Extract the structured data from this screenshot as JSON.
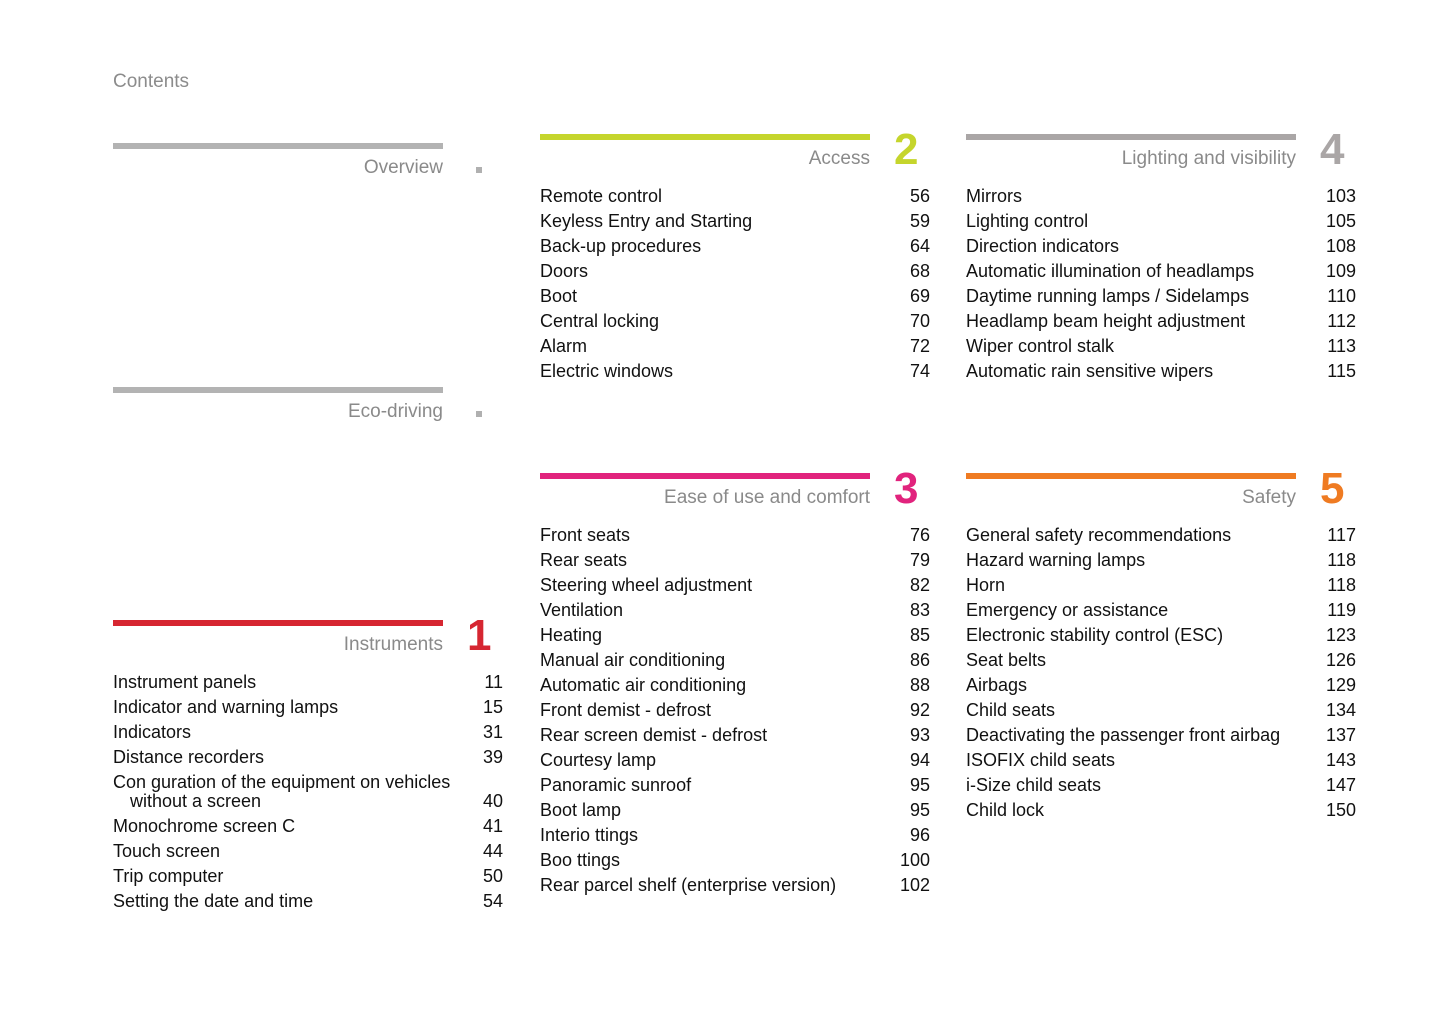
{
  "page_title": "Contents",
  "sections": [
    {
      "id": "overview",
      "title": "Overview",
      "color": "#b3b3b3",
      "number": "",
      "items": []
    },
    {
      "id": "eco",
      "title": "Eco-driving",
      "color": "#b3b3b3",
      "number": "",
      "items": []
    },
    {
      "id": "instruments",
      "title": "Instruments",
      "color": "#d62631",
      "number": "1",
      "items": [
        {
          "text": "Instrument panels",
          "page": "11"
        },
        {
          "text": "Indicator and warning lamps",
          "page": "15"
        },
        {
          "text": "Indicators",
          "page": "31"
        },
        {
          "text": "Distance recorders",
          "page": "39"
        },
        {
          "text": "Con  guration of the equipment on vehicles",
          "text2": "without a screen",
          "page": "40"
        },
        {
          "text": "Monochrome screen C",
          "page": "41"
        },
        {
          "text": "Touch screen",
          "page": "44"
        },
        {
          "text": "Trip computer",
          "page": "50"
        },
        {
          "text": "Setting the date and time",
          "page": "54"
        }
      ]
    },
    {
      "id": "access",
      "title": "Access",
      "color": "#c5d52c",
      "number": "2",
      "items": [
        {
          "text": "Remote control",
          "page": "56"
        },
        {
          "text": "Keyless Entry and Starting",
          "page": "59"
        },
        {
          "text": "Back-up procedures",
          "page": "64"
        },
        {
          "text": "Doors",
          "page": "68"
        },
        {
          "text": "Boot",
          "page": "69"
        },
        {
          "text": "Central locking",
          "page": "70"
        },
        {
          "text": "Alarm",
          "page": "72"
        },
        {
          "text": "Electric windows",
          "page": "74"
        }
      ]
    },
    {
      "id": "ease",
      "title": "Ease of use and comfort",
      "color": "#e1237d",
      "number": "3",
      "items": [
        {
          "text": "Front seats",
          "page": "76"
        },
        {
          "text": "Rear seats",
          "page": "79"
        },
        {
          "text": "Steering wheel adjustment",
          "page": "82"
        },
        {
          "text": "Ventilation",
          "page": "83"
        },
        {
          "text": "Heating",
          "page": "85"
        },
        {
          "text": "Manual air conditioning",
          "page": "86"
        },
        {
          "text": "Automatic air conditioning",
          "page": "88"
        },
        {
          "text": "Front demist - defrost",
          "page": "92"
        },
        {
          "text": "Rear screen demist - defrost",
          "page": "93"
        },
        {
          "text": "Courtesy lamp",
          "page": "94"
        },
        {
          "text": "Panoramic sunroof",
          "page": "95"
        },
        {
          "text": "Boot lamp",
          "page": "95"
        },
        {
          "text": "Interio    ttings",
          "page": "96"
        },
        {
          "text": "Boo    ttings",
          "page": "100"
        },
        {
          "text": "Rear parcel shelf (enterprise version)",
          "page": "102"
        }
      ]
    },
    {
      "id": "lighting",
      "title": "Lighting and visibility",
      "color": "#aaa6a6",
      "number": "4",
      "items": [
        {
          "text": "Mirrors",
          "page": "103"
        },
        {
          "text": "Lighting control",
          "page": "105"
        },
        {
          "text": "Direction indicators",
          "page": "108"
        },
        {
          "text": "Automatic illumination of headlamps",
          "page": "109"
        },
        {
          "text": "Daytime running lamps / Sidelamps",
          "page": "110"
        },
        {
          "text": "Headlamp beam height adjustment",
          "page": "112"
        },
        {
          "text": "Wiper control stalk",
          "page": "113"
        },
        {
          "text": "Automatic rain sensitive wipers",
          "page": "115"
        }
      ]
    },
    {
      "id": "safety",
      "title": "Safety",
      "color": "#ef7b22",
      "number": "5",
      "items": [
        {
          "text": "General safety recommendations",
          "page": "117"
        },
        {
          "text": "Hazard warning lamps",
          "page": "118"
        },
        {
          "text": "Horn",
          "page": "118"
        },
        {
          "text": "Emergency or assistance",
          "page": "119"
        },
        {
          "text": "Electronic stability control (ESC)",
          "page": "123"
        },
        {
          "text": "Seat belts",
          "page": "126"
        },
        {
          "text": "Airbags",
          "page": "129"
        },
        {
          "text": "Child seats",
          "page": "134"
        },
        {
          "text": "Deactivating the passenger front airbag",
          "page": "137"
        },
        {
          "text": "ISOFIX child seats",
          "page": "143"
        },
        {
          "text": "i-Size child seats",
          "page": "147"
        },
        {
          "text": "Child lock",
          "page": "150"
        }
      ]
    }
  ]
}
